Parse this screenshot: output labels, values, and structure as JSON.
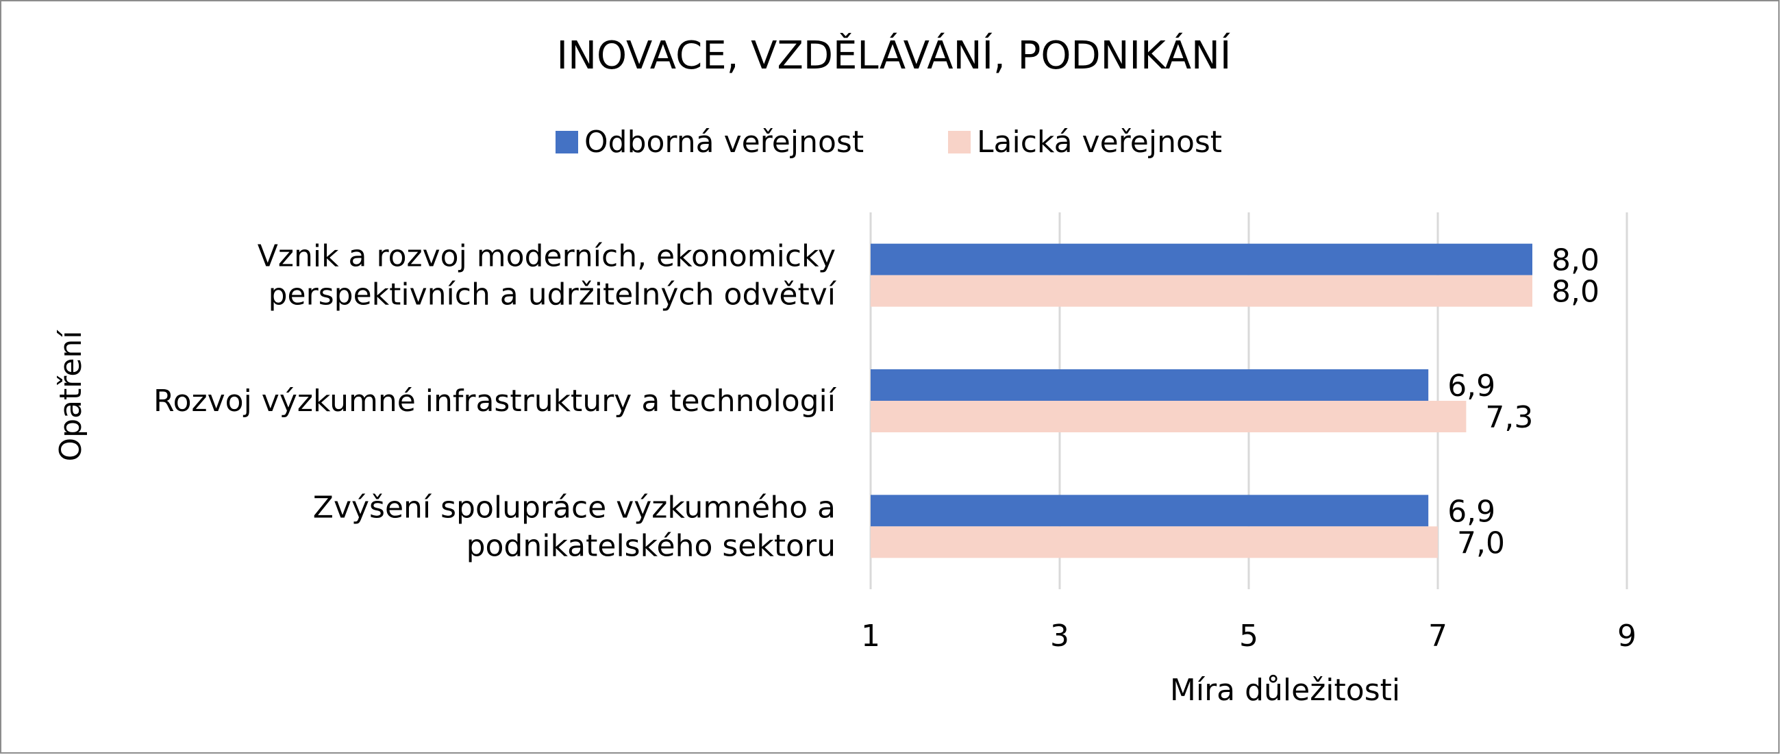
{
  "chart_data": {
    "type": "bar",
    "orientation": "horizontal",
    "title": "INOVACE, VZDĚLÁVÁNÍ, PODNIKÁNÍ",
    "xlabel": "Míra důležitosti",
    "ylabel": "Opatření",
    "xlim": [
      1,
      9
    ],
    "xticks": [
      "1",
      "3",
      "5",
      "7",
      "9"
    ],
    "grid": "vertical",
    "legend_position": "top",
    "categories": [
      [
        "Vznik a rozvoj moderních, ekonomicky",
        "perspektivních a udržitelných odvětví"
      ],
      [
        "Rozvoj výzkumné infrastruktury a technologií"
      ],
      [
        "Zvýšení spolupráce výzkumného a",
        "podnikatelského sektoru"
      ]
    ],
    "series": [
      {
        "name": "Odborná veřejnost",
        "color": "#4472C4",
        "values": [
          8.0,
          6.9,
          6.9
        ],
        "labels": [
          "8,0",
          "6,9",
          "6,9"
        ]
      },
      {
        "name": "Laická veřejnost",
        "color": "#F8D3C8",
        "values": [
          8.0,
          7.3,
          7.0
        ],
        "labels": [
          "8,0",
          "7,3",
          "7,0"
        ]
      }
    ]
  }
}
